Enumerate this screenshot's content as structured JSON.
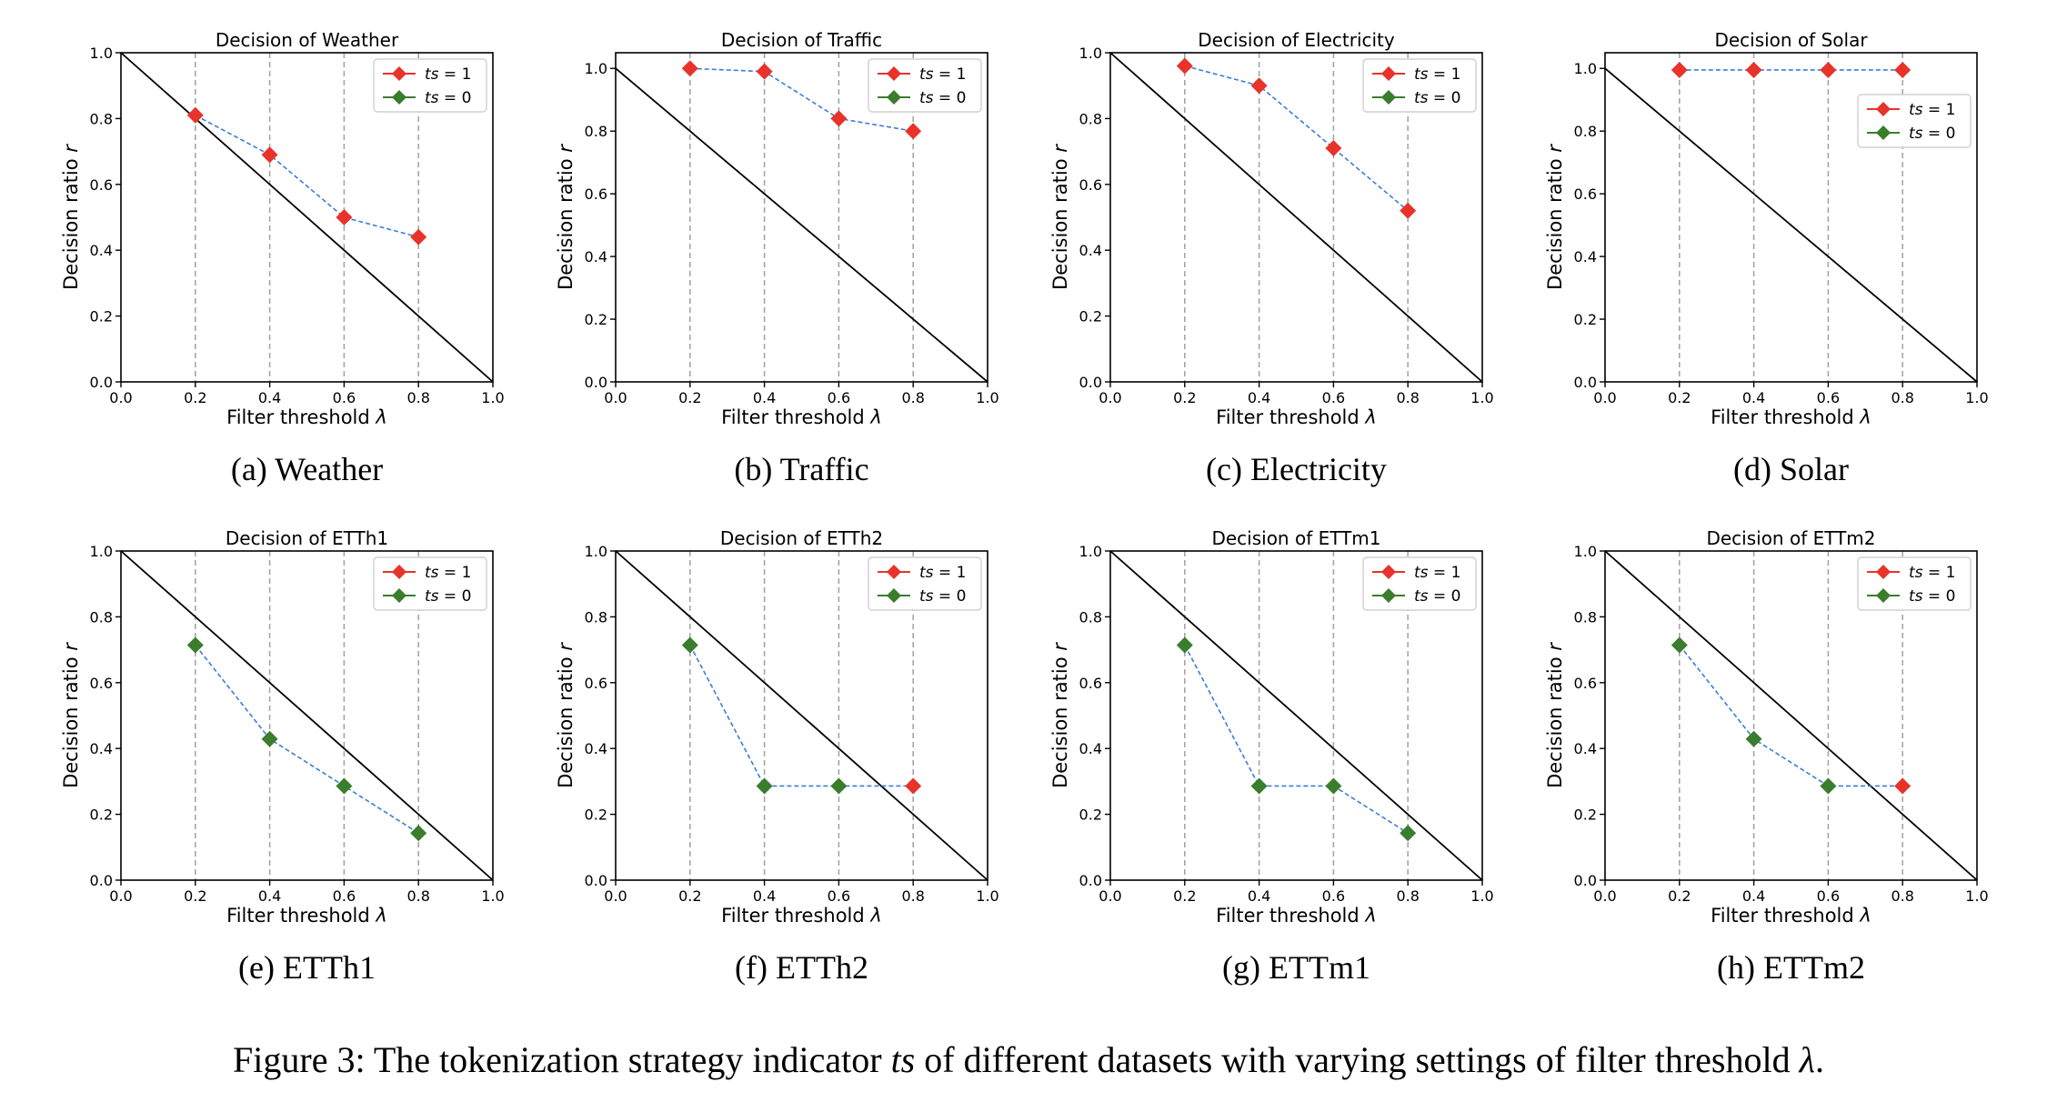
{
  "figure": {
    "caption_prefix": "Figure 3: The tokenization strategy indicator ",
    "caption_var1": "ts",
    "caption_middle": " of different datasets with varying settings of filter threshold ",
    "caption_var2": "λ",
    "caption_suffix": "."
  },
  "chart_data": [
    {
      "type": "line",
      "subcaption": "(a)  Weather",
      "title": "Decision of Weather",
      "xlabel": "Filter threshold λ",
      "ylabel": "Decision ratio r",
      "xlim": [
        0,
        1
      ],
      "ylim": [
        0,
        1
      ],
      "ytick_start": 0.0,
      "xticks": [
        "0.0",
        "0.2",
        "0.4",
        "0.6",
        "0.8",
        "1.0"
      ],
      "yticks": [
        "0.0",
        "0.2",
        "0.4",
        "0.6",
        "0.8",
        "1.0"
      ],
      "legend_loc": "upper-right",
      "legend": [
        {
          "name": "ts = 1",
          "color": "#e8332a"
        },
        {
          "name": "ts = 0",
          "color": "#3a7d2c"
        }
      ],
      "x": [
        0.2,
        0.4,
        0.6,
        0.8
      ],
      "y": [
        0.81,
        0.69,
        0.5,
        0.44
      ],
      "ts": [
        1,
        1,
        1,
        1
      ]
    },
    {
      "type": "line",
      "subcaption": "(b)  Traffic",
      "title": "Decision of Traffic",
      "xlabel": "Filter threshold λ",
      "ylabel": "Decision ratio r",
      "xlim": [
        0,
        1.0
      ],
      "ylim": [
        0,
        1.05
      ],
      "ytick_start": 0.0,
      "xticks": [
        "0.0",
        "0.2",
        "0.4",
        "0.6",
        "0.8",
        "1.0"
      ],
      "yticks": [
        "0.0",
        "0.2",
        "0.4",
        "0.6",
        "0.8",
        "1.0"
      ],
      "legend_loc": "upper-right",
      "legend": [
        {
          "name": "ts = 1",
          "color": "#e8332a"
        },
        {
          "name": "ts = 0",
          "color": "#3a7d2c"
        }
      ],
      "x": [
        0.2,
        0.4,
        0.6,
        0.8
      ],
      "y": [
        1.0,
        0.99,
        0.84,
        0.8
      ],
      "ts": [
        1,
        1,
        1,
        1
      ]
    },
    {
      "type": "line",
      "subcaption": "(c)  Electricity",
      "title": "Decision of Electricity",
      "xlabel": "Filter threshold λ",
      "ylabel": "Decision ratio r",
      "xlim": [
        0,
        1
      ],
      "ylim": [
        0,
        1
      ],
      "ytick_start": 0.0,
      "xticks": [
        "0.0",
        "0.2",
        "0.4",
        "0.6",
        "0.8",
        "1.0"
      ],
      "yticks": [
        "0.0",
        "0.2",
        "0.4",
        "0.6",
        "0.8",
        "1.0"
      ],
      "legend_loc": "upper-right",
      "legend": [
        {
          "name": "ts = 1",
          "color": "#e8332a"
        },
        {
          "name": "ts = 0",
          "color": "#3a7d2c"
        }
      ],
      "x": [
        0.2,
        0.4,
        0.6,
        0.8
      ],
      "y": [
        0.96,
        0.9,
        0.71,
        0.52
      ],
      "ts": [
        1,
        1,
        1,
        1
      ]
    },
    {
      "type": "line",
      "subcaption": "(d)  Solar",
      "title": "Decision of Solar",
      "xlabel": "Filter threshold λ",
      "ylabel": "Decision ratio r",
      "xlim": [
        0,
        1.0
      ],
      "ylim": [
        0,
        1.05
      ],
      "ytick_start": 0.0,
      "xticks": [
        "0.0",
        "0.2",
        "0.4",
        "0.6",
        "0.8",
        "1.0"
      ],
      "yticks": [
        "0.0",
        "0.2",
        "0.4",
        "0.6",
        "0.8",
        "1.0"
      ],
      "legend_loc": "right",
      "legend": [
        {
          "name": "ts = 1",
          "color": "#e8332a"
        },
        {
          "name": "ts = 0",
          "color": "#3a7d2c"
        }
      ],
      "x": [
        0.2,
        0.4,
        0.6,
        0.8
      ],
      "y": [
        0.995,
        0.995,
        0.995,
        0.995
      ],
      "ts": [
        1,
        1,
        1,
        1
      ]
    },
    {
      "type": "line",
      "subcaption": "(e)  ETTh1",
      "title": "Decision of ETTh1",
      "xlabel": "Filter threshold λ",
      "ylabel": "Decision ratio r",
      "xlim": [
        0,
        1
      ],
      "ylim": [
        0,
        1
      ],
      "ytick_start": 0.0,
      "xticks": [
        "0.0",
        "0.2",
        "0.4",
        "0.6",
        "0.8",
        "1.0"
      ],
      "yticks": [
        "0.0",
        "0.2",
        "0.4",
        "0.6",
        "0.8",
        "1.0"
      ],
      "legend_loc": "upper-right",
      "legend": [
        {
          "name": "ts = 1",
          "color": "#e8332a"
        },
        {
          "name": "ts = 0",
          "color": "#3a7d2c"
        }
      ],
      "x": [
        0.2,
        0.4,
        0.6,
        0.8
      ],
      "y": [
        0.714,
        0.429,
        0.286,
        0.143
      ],
      "ts": [
        0,
        0,
        0,
        0
      ]
    },
    {
      "type": "line",
      "subcaption": "(f)  ETTh2",
      "title": "Decision of ETTh2",
      "xlabel": "Filter threshold λ",
      "ylabel": "Decision ratio r",
      "xlim": [
        0,
        1
      ],
      "ylim": [
        0,
        1
      ],
      "ytick_start": 0.0,
      "xticks": [
        "0.0",
        "0.2",
        "0.4",
        "0.6",
        "0.8",
        "1.0"
      ],
      "yticks": [
        "0.0",
        "0.2",
        "0.4",
        "0.6",
        "0.8",
        "1.0"
      ],
      "legend_loc": "upper-right",
      "legend": [
        {
          "name": "ts = 1",
          "color": "#e8332a"
        },
        {
          "name": "ts = 0",
          "color": "#3a7d2c"
        }
      ],
      "x": [
        0.2,
        0.4,
        0.6,
        0.8
      ],
      "y": [
        0.714,
        0.286,
        0.286,
        0.286
      ],
      "ts": [
        0,
        0,
        0,
        1
      ]
    },
    {
      "type": "line",
      "subcaption": "(g)  ETTm1",
      "title": "Decision of ETTm1",
      "xlabel": "Filter threshold λ",
      "ylabel": "Decision ratio r",
      "xlim": [
        0,
        1
      ],
      "ylim": [
        0,
        1
      ],
      "ytick_start": 0.0,
      "xticks": [
        "0.0",
        "0.2",
        "0.4",
        "0.6",
        "0.8",
        "1.0"
      ],
      "yticks": [
        "0.0",
        "0.2",
        "0.4",
        "0.6",
        "0.8",
        "1.0"
      ],
      "legend_loc": "upper-right",
      "legend": [
        {
          "name": "ts = 1",
          "color": "#e8332a"
        },
        {
          "name": "ts = 0",
          "color": "#3a7d2c"
        }
      ],
      "x": [
        0.2,
        0.4,
        0.6,
        0.8
      ],
      "y": [
        0.714,
        0.286,
        0.286,
        0.143
      ],
      "ts": [
        0,
        0,
        0,
        0
      ]
    },
    {
      "type": "line",
      "subcaption": "(h)  ETTm2",
      "title": "Decision of ETTm2",
      "xlabel": "Filter threshold λ",
      "ylabel": "Decision ratio r",
      "xlim": [
        0,
        1
      ],
      "ylim": [
        0,
        1
      ],
      "ytick_start": 0.0,
      "xticks": [
        "0.0",
        "0.2",
        "0.4",
        "0.6",
        "0.8",
        "1.0"
      ],
      "yticks": [
        "0.0",
        "0.2",
        "0.4",
        "0.6",
        "0.8",
        "1.0"
      ],
      "legend_loc": "upper-right",
      "legend": [
        {
          "name": "ts = 1",
          "color": "#e8332a"
        },
        {
          "name": "ts = 0",
          "color": "#3a7d2c"
        }
      ],
      "x": [
        0.2,
        0.4,
        0.6,
        0.8
      ],
      "y": [
        0.714,
        0.429,
        0.286,
        0.286
      ],
      "ts": [
        0,
        0,
        0,
        1
      ]
    }
  ],
  "colors": {
    "ts1": "#e8332a",
    "ts0": "#3a7d2c",
    "connector": "#3b7dd8",
    "diagonal": "#000000",
    "vgrid": "#a6a6a6"
  }
}
